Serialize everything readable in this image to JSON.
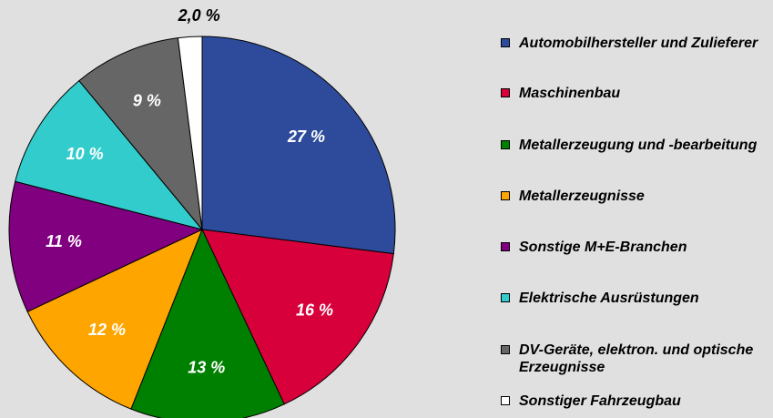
{
  "chart_data": {
    "type": "pie",
    "categories": [
      "Automobilhersteller und Zulieferer",
      "Maschinenbau",
      "Metallerzeugung und -bearbeitung",
      "Metallerzeugnisse",
      "Sonstige M+E-Branchen",
      "Elektrische Ausrüstungen",
      "DV-Geräte, elektron. und optische Erzeugnisse",
      "Sonstiger Fahrzeugbau"
    ],
    "values": [
      27,
      16,
      13,
      12,
      11,
      10,
      9,
      2
    ],
    "value_labels": [
      "27 %",
      "16 %",
      "13 %",
      "12 %",
      "11 %",
      "10 %",
      "9 %",
      "2,0 %"
    ],
    "colors": [
      "#2e4b9b",
      "#d7003a",
      "#008000",
      "#ffa500",
      "#800080",
      "#33cccc",
      "#666666",
      "#ffffff"
    ],
    "legend": "right"
  }
}
